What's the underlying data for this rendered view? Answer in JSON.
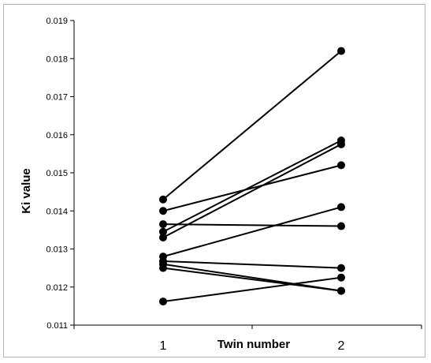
{
  "chart_data": {
    "type": "line",
    "title": "",
    "xlabel": "Twin number",
    "ylabel": "Ki value",
    "categories": [
      "1",
      "2"
    ],
    "ylim": [
      0.011,
      0.019
    ],
    "yticks": [
      "0.011",
      "0.012",
      "0.013",
      "0.014",
      "0.015",
      "0.016",
      "0.017",
      "0.018",
      "0.019"
    ],
    "grid": false,
    "legend": "none",
    "line_color": "#000000",
    "series": [
      {
        "values": [
          0.0143,
          0.0182
        ]
      },
      {
        "values": [
          0.014,
          0.0152
        ]
      },
      {
        "values": [
          0.01365,
          0.0136
        ]
      },
      {
        "values": [
          0.01345,
          0.01585
        ]
      },
      {
        "values": [
          0.0133,
          0.01575
        ]
      },
      {
        "values": [
          0.0128,
          0.0141
        ]
      },
      {
        "values": [
          0.01268,
          0.0125
        ]
      },
      {
        "values": [
          0.0126,
          0.0119
        ]
      },
      {
        "values": [
          0.0125,
          0.0119
        ]
      },
      {
        "values": [
          0.01162,
          0.01225
        ]
      }
    ]
  }
}
